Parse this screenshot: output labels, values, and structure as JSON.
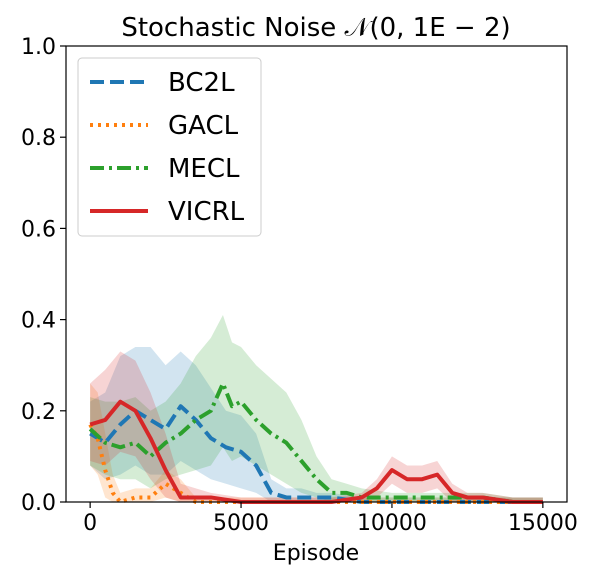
{
  "chart_data": {
    "type": "line",
    "title": "Stochastic Noise 𝒩(0, 1E − 2)",
    "xlabel": "Episode",
    "ylabel": "",
    "xlim": [
      -800,
      15800
    ],
    "ylim": [
      0,
      1.0
    ],
    "xticks": [
      0,
      5000,
      10000,
      15000
    ],
    "xtick_labels": [
      "0",
      "5000",
      "10000",
      "15000"
    ],
    "yticks": [
      0.0,
      0.2,
      0.4,
      0.6,
      0.8,
      1.0
    ],
    "ytick_labels": [
      "0.0",
      "0.2",
      "0.4",
      "0.6",
      "0.8",
      "1.0"
    ],
    "grid": false,
    "legend_position": "top-left",
    "series": [
      {
        "name": "BC2L",
        "color": "#1f77b4",
        "style": "dashed",
        "x": [
          0,
          500,
          1000,
          1500,
          2000,
          2500,
          3000,
          3500,
          4000,
          4500,
          5000,
          5500,
          6000,
          6500,
          7000,
          7500,
          8000,
          9000,
          10000,
          11000,
          12000,
          13000,
          14000,
          15000
        ],
        "values": [
          0.15,
          0.13,
          0.17,
          0.2,
          0.18,
          0.16,
          0.21,
          0.18,
          0.14,
          0.12,
          0.11,
          0.08,
          0.02,
          0.01,
          0.01,
          0.01,
          0.01,
          0.0,
          0.0,
          0.0,
          0.0,
          0.0,
          0.0,
          0.0
        ],
        "upper": [
          0.22,
          0.24,
          0.32,
          0.34,
          0.34,
          0.3,
          0.33,
          0.3,
          0.25,
          0.2,
          0.19,
          0.15,
          0.05,
          0.03,
          0.03,
          0.02,
          0.02,
          0.01,
          0.01,
          0.01,
          0.01,
          0.01,
          0.01,
          0.01
        ],
        "lower": [
          0.08,
          0.05,
          0.06,
          0.08,
          0.06,
          0.06,
          0.09,
          0.07,
          0.05,
          0.04,
          0.03,
          0.02,
          0.0,
          0.0,
          0.0,
          0.0,
          0.0,
          0.0,
          0.0,
          0.0,
          0.0,
          0.0,
          0.0,
          0.0
        ]
      },
      {
        "name": "GACL",
        "color": "#ff7f0e",
        "style": "dotted",
        "x": [
          0,
          250,
          500,
          750,
          1000,
          1500,
          2000,
          2500,
          3000,
          3500,
          4000,
          5000,
          6000,
          8000,
          10000,
          12000,
          15000
        ],
        "values": [
          0.17,
          0.14,
          0.07,
          0.02,
          0.0,
          0.01,
          0.01,
          0.04,
          0.02,
          0.0,
          0.0,
          0.0,
          0.0,
          0.0,
          0.0,
          0.0,
          0.0
        ],
        "upper": [
          0.26,
          0.24,
          0.15,
          0.06,
          0.02,
          0.03,
          0.03,
          0.07,
          0.05,
          0.01,
          0.01,
          0.01,
          0.01,
          0.01,
          0.01,
          0.01,
          0.01
        ],
        "lower": [
          0.08,
          0.06,
          0.01,
          0.0,
          0.0,
          0.0,
          0.0,
          0.01,
          0.0,
          0.0,
          0.0,
          0.0,
          0.0,
          0.0,
          0.0,
          0.0,
          0.0
        ]
      },
      {
        "name": "MECL",
        "color": "#2ca02c",
        "style": "dashdot",
        "x": [
          0,
          500,
          1000,
          1500,
          2000,
          2500,
          3000,
          3500,
          4000,
          4400,
          4700,
          5000,
          5500,
          6000,
          6500,
          7000,
          7500,
          8000,
          8500,
          9000,
          10000,
          11000,
          12000,
          13000,
          14000,
          15000
        ],
        "values": [
          0.16,
          0.13,
          0.12,
          0.13,
          0.1,
          0.13,
          0.15,
          0.18,
          0.2,
          0.26,
          0.21,
          0.22,
          0.18,
          0.15,
          0.13,
          0.09,
          0.05,
          0.02,
          0.02,
          0.01,
          0.01,
          0.01,
          0.01,
          0.01,
          0.0,
          0.0
        ],
        "upper": [
          0.23,
          0.22,
          0.22,
          0.23,
          0.2,
          0.22,
          0.26,
          0.32,
          0.36,
          0.41,
          0.35,
          0.34,
          0.3,
          0.27,
          0.24,
          0.18,
          0.1,
          0.05,
          0.04,
          0.03,
          0.02,
          0.02,
          0.02,
          0.02,
          0.01,
          0.01
        ],
        "lower": [
          0.08,
          0.06,
          0.05,
          0.05,
          0.03,
          0.05,
          0.06,
          0.07,
          0.08,
          0.12,
          0.09,
          0.1,
          0.08,
          0.06,
          0.04,
          0.02,
          0.01,
          0.0,
          0.0,
          0.0,
          0.0,
          0.0,
          0.0,
          0.0,
          0.0,
          0.0
        ]
      },
      {
        "name": "VICRL",
        "color": "#d62728",
        "style": "solid",
        "x": [
          0,
          500,
          1000,
          1500,
          2000,
          2500,
          3000,
          3500,
          4000,
          5000,
          6000,
          7000,
          8000,
          9000,
          9500,
          10000,
          10500,
          11000,
          11500,
          12000,
          12500,
          13000,
          14000,
          15000
        ],
        "values": [
          0.17,
          0.18,
          0.22,
          0.2,
          0.14,
          0.07,
          0.01,
          0.01,
          0.01,
          0.0,
          0.0,
          0.0,
          0.0,
          0.01,
          0.03,
          0.07,
          0.05,
          0.05,
          0.06,
          0.02,
          0.01,
          0.01,
          0.0,
          0.0
        ],
        "upper": [
          0.26,
          0.29,
          0.33,
          0.31,
          0.24,
          0.15,
          0.04,
          0.03,
          0.02,
          0.01,
          0.01,
          0.01,
          0.01,
          0.02,
          0.05,
          0.1,
          0.08,
          0.08,
          0.09,
          0.04,
          0.02,
          0.02,
          0.01,
          0.01
        ],
        "lower": [
          0.09,
          0.08,
          0.11,
          0.1,
          0.05,
          0.01,
          0.0,
          0.0,
          0.0,
          0.0,
          0.0,
          0.0,
          0.0,
          0.0,
          0.01,
          0.04,
          0.02,
          0.02,
          0.03,
          0.0,
          0.0,
          0.0,
          0.0,
          0.0
        ]
      }
    ]
  }
}
